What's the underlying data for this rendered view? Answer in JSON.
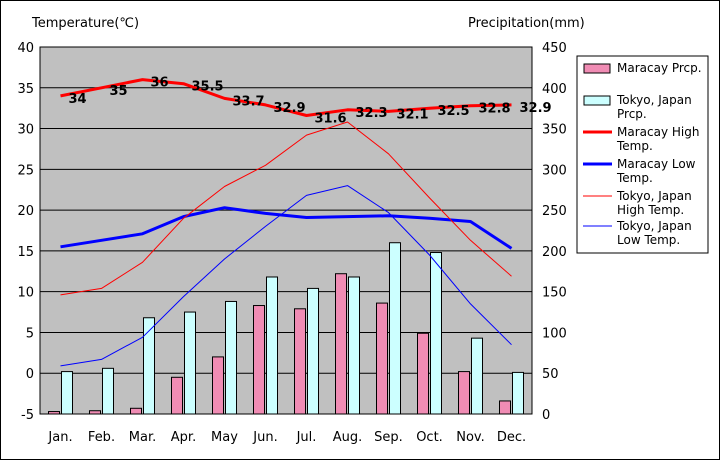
{
  "chart_data": {
    "type": "bar",
    "y_left_label": "Temperature(℃)",
    "y_right_label": "Precipitation(mm)",
    "categories": [
      "Jan.",
      "Feb.",
      "Mar.",
      "Apr.",
      "May",
      "Jun.",
      "Jul.",
      "Aug.",
      "Sep.",
      "Oct.",
      "Nov.",
      "Dec."
    ],
    "y_left_lim": [
      -5,
      40
    ],
    "y_left_ticks": [
      "-5",
      "0",
      "5",
      "10",
      "15",
      "20",
      "25",
      "30",
      "35",
      "40"
    ],
    "y_right_lim": [
      0,
      450
    ],
    "y_right_ticks": [
      "0",
      "50",
      "100",
      "150",
      "200",
      "250",
      "300",
      "350",
      "400",
      "450"
    ],
    "bar_series": [
      {
        "name": "Maracay Prcp.",
        "color": "#f08cb4",
        "values": [
          3,
          4,
          7,
          45,
          70,
          133,
          129,
          172,
          136,
          99,
          52,
          16
        ]
      },
      {
        "name": "Tokyo, Japan Prcp.",
        "color": "#ccffff",
        "values": [
          52,
          56,
          118,
          125,
          138,
          168,
          154,
          168,
          210,
          198,
          93,
          51
        ]
      }
    ],
    "line_series": [
      {
        "name": "Maracay High Temp.",
        "color": "#ff0000",
        "width": 3,
        "values": [
          34,
          35,
          36,
          35.5,
          33.7,
          32.9,
          31.6,
          32.3,
          32.1,
          32.5,
          32.8,
          32.9
        ]
      },
      {
        "name": "Maracay Low Temp.",
        "color": "#0000ff",
        "width": 3,
        "values": [
          15.5,
          16.3,
          17.1,
          19.2,
          20.3,
          19.6,
          19.1,
          19.2,
          19.3,
          19.0,
          18.6,
          15.3
        ]
      },
      {
        "name": "Tokyo, Japan High Temp.",
        "color": "#ff0000",
        "width": 1,
        "values": [
          9.6,
          10.4,
          13.6,
          19.0,
          22.9,
          25.5,
          29.2,
          30.8,
          26.9,
          21.5,
          16.3,
          11.9
        ]
      },
      {
        "name": "Tokyo, Japan Low Temp.",
        "color": "#0000ff",
        "width": 1,
        "values": [
          0.9,
          1.7,
          4.4,
          9.4,
          14.0,
          18.0,
          21.8,
          23.0,
          19.7,
          14.5,
          8.5,
          3.5
        ]
      }
    ],
    "data_labels": [
      "34",
      "35",
      "36",
      "35.5",
      "33.7",
      "32.9",
      "31.6",
      "32.3",
      "32.1",
      "32.5",
      "32.8",
      "32.9"
    ],
    "legend_entries": [
      {
        "text": "Maracay Prcp.",
        "kind": "box",
        "color": "#f08cb4"
      },
      {
        "text": "Tokyo, Japan Prcp.",
        "kind": "box",
        "color": "#ccffff"
      },
      {
        "text": "Maracay High Temp.",
        "kind": "line",
        "color": "#ff0000",
        "width": 3
      },
      {
        "text": "Maracay Low Temp.",
        "kind": "line",
        "color": "#0000ff",
        "width": 3
      },
      {
        "text": "Tokyo, Japan High Temp.",
        "kind": "line",
        "color": "#ff0000",
        "width": 1
      },
      {
        "text": "Tokyo, Japan Low Temp.",
        "kind": "line",
        "color": "#0000ff",
        "width": 1
      }
    ],
    "legend_position": "right",
    "plot_background": "#c0c0c0",
    "grid": true
  }
}
